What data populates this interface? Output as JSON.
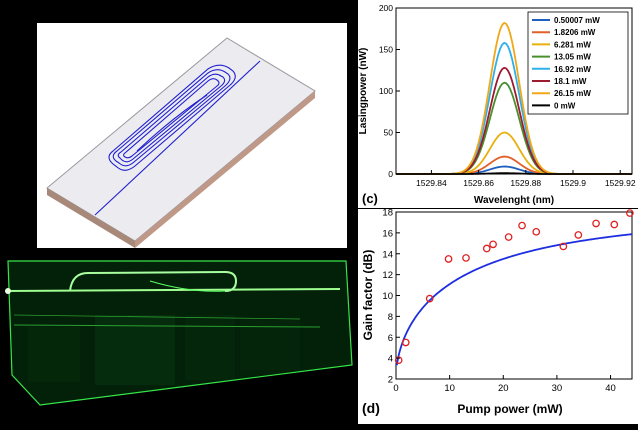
{
  "chart_data": [
    {
      "panel_label": "(c)",
      "type": "line",
      "xlabel": "Wavelenght (nm)",
      "ylabel": "Lasingpower (nW)",
      "xlim": [
        1529.825,
        1529.925
      ],
      "ylim": [
        0,
        200
      ],
      "xticks": [
        "1529.84",
        "1529.86",
        "1529.88",
        "1529.9",
        "1529.92"
      ],
      "yticks": [
        "0",
        "50",
        "100",
        "150",
        "200"
      ],
      "peak_wavelength": 1529.871,
      "legend_position": "top-right",
      "series": [
        {
          "name": "0.50007 mW",
          "color": "#1f5fbf",
          "peak": 9
        },
        {
          "name": "1.8206 mW",
          "color": "#e0602a",
          "peak": 21
        },
        {
          "name": "6.281 mW",
          "color": "#e8b00c",
          "peak": 50
        },
        {
          "name": "13.05 mW",
          "color": "#4a8f2e",
          "peak": 110
        },
        {
          "name": "16.92 mW",
          "color": "#2fb0e8",
          "peak": 158
        },
        {
          "name": "18.1 mW",
          "color": "#9c1b2e",
          "peak": 128
        },
        {
          "name": "26.15 mW",
          "color": "#f0a818",
          "peak": 182
        },
        {
          "name": "0 mW",
          "color": "#000000",
          "peak": 1
        }
      ]
    },
    {
      "panel_label": "(d)",
      "type": "scatter",
      "xlabel": "Pump power (mW)",
      "ylabel": "Gain factor (dB)",
      "xlim": [
        0,
        44
      ],
      "ylim": [
        2,
        18
      ],
      "xticks": [
        "0",
        "10",
        "20",
        "30",
        "40"
      ],
      "yticks": [
        "2",
        "4",
        "6",
        "8",
        "10",
        "12",
        "14",
        "16",
        "18"
      ],
      "points_color": "#e02020",
      "fit_color": "#1c2ee0",
      "x": [
        0.5,
        1.82,
        6.28,
        9.8,
        13.05,
        16.92,
        18.1,
        21.0,
        23.5,
        26.15,
        31.2,
        34.0,
        37.3,
        40.7,
        43.6
      ],
      "y": [
        3.8,
        5.5,
        9.7,
        13.5,
        13.6,
        14.5,
        14.9,
        15.6,
        16.7,
        16.1,
        14.7,
        15.8,
        16.9,
        16.8,
        17.9
      ]
    }
  ]
}
